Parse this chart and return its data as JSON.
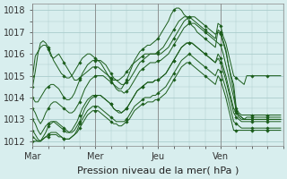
{
  "bg_color": "#d8eeee",
  "grid_color": "#aacccc",
  "line_color": "#1a5c1a",
  "marker_color": "#1a5c1a",
  "ylabel_ticks": [
    1012,
    1013,
    1014,
    1015,
    1016,
    1017,
    1018
  ],
  "xlim": [
    0,
    96
  ],
  "ylim": [
    1011.8,
    1018.3
  ],
  "xlabel": "Pression niveau de la mer( hPa )",
  "xlabel_fontsize": 8,
  "tick_fontsize": 7,
  "day_labels": [
    "Mar",
    "Mer",
    "Jeu",
    "Ven"
  ],
  "day_positions": [
    0,
    24,
    48,
    72
  ],
  "series": [
    [
      1015.0,
      1015.9,
      1016.1,
      1016.3,
      1016.4,
      1016.4,
      1016.2,
      1015.9,
      1015.8,
      1015.9,
      1016.0,
      1015.8,
      1015.6,
      1015.4,
      1015.2,
      1015.0,
      1014.8,
      1014.8,
      1014.9,
      1015.0,
      1015.1,
      1015.2,
      1015.3,
      1015.4,
      1015.4,
      1015.4,
      1015.3,
      1015.2,
      1015.1,
      1015.0,
      1014.9,
      1014.8,
      1014.8,
      1014.8,
      1014.9,
      1015.0,
      1015.2,
      1015.3,
      1015.5,
      1015.6,
      1015.7,
      1015.8,
      1015.9,
      1016.0,
      1016.0,
      1016.0,
      1016.0,
      1016.0,
      1016.1,
      1016.2,
      1016.3,
      1016.5,
      1016.7,
      1016.9,
      1017.1,
      1017.3,
      1017.5,
      1017.6,
      1017.7,
      1017.7,
      1017.7,
      1017.6,
      1017.5,
      1017.4,
      1017.3,
      1017.2,
      1017.1,
      1017.0,
      1016.9,
      1016.8,
      1016.7,
      1017.4,
      1017.3,
      1016.8,
      1016.5,
      1016.0,
      1015.5,
      1015.0,
      1014.9,
      1014.8,
      1014.7,
      1014.6,
      1015.0,
      1015.0,
      1015.0,
      1015.0,
      1015.0,
      1015.0,
      1015.0,
      1015.0,
      1015.0,
      1015.0,
      1015.0,
      1015.0,
      1015.0,
      1015.0
    ],
    [
      1014.5,
      1015.2,
      1016.0,
      1016.5,
      1016.6,
      1016.5,
      1016.3,
      1016.0,
      1015.7,
      1015.5,
      1015.3,
      1015.1,
      1015.0,
      1014.9,
      1014.9,
      1015.0,
      1015.2,
      1015.4,
      1015.6,
      1015.8,
      1015.9,
      1016.0,
      1016.0,
      1015.9,
      1015.8,
      1015.7,
      1015.6,
      1015.4,
      1015.2,
      1015.0,
      1014.8,
      1014.6,
      1014.5,
      1014.4,
      1014.4,
      1014.6,
      1014.8,
      1015.1,
      1015.4,
      1015.7,
      1015.9,
      1016.1,
      1016.2,
      1016.3,
      1016.4,
      1016.4,
      1016.5,
      1016.6,
      1016.7,
      1016.9,
      1017.1,
      1017.3,
      1017.5,
      1017.8,
      1018.0,
      1018.1,
      1018.1,
      1018.0,
      1017.8,
      1017.7,
      1017.5,
      1017.3,
      1017.2,
      1017.0,
      1016.9,
      1016.8,
      1016.7,
      1016.6,
      1016.5,
      1016.4,
      1016.3,
      1017.1,
      1017.0,
      1016.6,
      1016.2,
      1015.5,
      1014.9,
      1014.3,
      1013.4,
      1013.2,
      1013.1,
      1013.0,
      1013.1,
      1013.1,
      1013.1,
      1013.1,
      1013.1,
      1013.1,
      1013.1,
      1013.1,
      1013.1,
      1013.1,
      1013.1,
      1013.1,
      1013.1,
      1013.1
    ],
    [
      1014.0,
      1013.8,
      1013.8,
      1014.0,
      1014.2,
      1014.4,
      1014.5,
      1014.6,
      1014.6,
      1014.5,
      1014.4,
      1014.2,
      1014.0,
      1013.9,
      1013.9,
      1014.0,
      1014.2,
      1014.5,
      1014.8,
      1015.1,
      1015.3,
      1015.5,
      1015.6,
      1015.7,
      1015.7,
      1015.7,
      1015.7,
      1015.6,
      1015.5,
      1015.3,
      1015.1,
      1014.9,
      1014.8,
      1014.7,
      1014.6,
      1014.6,
      1014.7,
      1014.8,
      1015.0,
      1015.2,
      1015.4,
      1015.6,
      1015.7,
      1015.8,
      1015.9,
      1016.0,
      1016.0,
      1016.0,
      1016.0,
      1016.0,
      1016.1,
      1016.2,
      1016.3,
      1016.5,
      1016.7,
      1016.9,
      1017.1,
      1017.3,
      1017.5,
      1017.6,
      1017.7,
      1017.7,
      1017.7,
      1017.6,
      1017.5,
      1017.4,
      1017.3,
      1017.2,
      1017.1,
      1017.0,
      1016.9,
      1017.0,
      1016.9,
      1016.5,
      1016.1,
      1015.5,
      1015.0,
      1014.6,
      1013.5,
      1013.3,
      1013.2,
      1013.2,
      1013.2,
      1013.2,
      1013.2,
      1013.2,
      1013.2,
      1013.2,
      1013.2,
      1013.2,
      1013.2,
      1013.2,
      1013.2,
      1013.2,
      1013.2,
      1013.2
    ],
    [
      1013.5,
      1013.3,
      1013.0,
      1012.8,
      1013.0,
      1013.3,
      1013.5,
      1013.7,
      1013.8,
      1013.8,
      1013.7,
      1013.6,
      1013.5,
      1013.4,
      1013.3,
      1013.3,
      1013.4,
      1013.6,
      1013.8,
      1014.1,
      1014.4,
      1014.6,
      1014.8,
      1014.9,
      1015.0,
      1015.0,
      1015.0,
      1015.0,
      1014.9,
      1014.8,
      1014.7,
      1014.6,
      1014.4,
      1014.3,
      1014.3,
      1014.2,
      1014.3,
      1014.4,
      1014.6,
      1014.8,
      1015.0,
      1015.2,
      1015.3,
      1015.4,
      1015.5,
      1015.6,
      1015.6,
      1015.6,
      1015.7,
      1015.7,
      1015.8,
      1015.9,
      1016.0,
      1016.2,
      1016.4,
      1016.6,
      1016.8,
      1017.0,
      1017.2,
      1017.3,
      1017.4,
      1017.4,
      1017.4,
      1017.3,
      1017.2,
      1017.1,
      1017.0,
      1016.9,
      1016.8,
      1016.7,
      1016.6,
      1016.5,
      1016.4,
      1016.0,
      1015.5,
      1015.0,
      1014.5,
      1014.0,
      1013.4,
      1013.2,
      1013.1,
      1013.0,
      1013.0,
      1013.0,
      1013.0,
      1013.0,
      1013.0,
      1013.0,
      1013.0,
      1013.0,
      1013.0,
      1013.0,
      1013.0,
      1013.0,
      1013.0,
      1013.0
    ],
    [
      1013.0,
      1012.8,
      1012.5,
      1012.3,
      1012.5,
      1012.7,
      1012.8,
      1012.9,
      1012.9,
      1012.8,
      1012.7,
      1012.6,
      1012.5,
      1012.4,
      1012.4,
      1012.5,
      1012.7,
      1012.9,
      1013.2,
      1013.5,
      1013.7,
      1013.9,
      1014.0,
      1014.1,
      1014.1,
      1014.1,
      1014.1,
      1014.0,
      1013.9,
      1013.8,
      1013.7,
      1013.5,
      1013.4,
      1013.4,
      1013.3,
      1013.4,
      1013.5,
      1013.7,
      1013.9,
      1014.1,
      1014.3,
      1014.4,
      1014.5,
      1014.6,
      1014.7,
      1014.7,
      1014.7,
      1014.8,
      1014.8,
      1014.9,
      1015.0,
      1015.1,
      1015.3,
      1015.5,
      1015.7,
      1015.9,
      1016.1,
      1016.3,
      1016.4,
      1016.5,
      1016.5,
      1016.5,
      1016.4,
      1016.3,
      1016.2,
      1016.1,
      1016.0,
      1015.9,
      1015.8,
      1015.7,
      1015.6,
      1016.0,
      1015.8,
      1015.4,
      1015.0,
      1014.5,
      1014.0,
      1013.5,
      1013.3,
      1013.1,
      1013.0,
      1013.0,
      1013.0,
      1013.0,
      1013.0,
      1013.0,
      1013.0,
      1013.0,
      1013.0,
      1013.0,
      1013.0,
      1013.0,
      1013.0,
      1013.0,
      1013.0,
      1013.0
    ],
    [
      1012.5,
      1012.3,
      1012.1,
      1012.0,
      1012.2,
      1012.4,
      1012.7,
      1012.8,
      1012.9,
      1012.9,
      1012.8,
      1012.7,
      1012.6,
      1012.5,
      1012.4,
      1012.4,
      1012.5,
      1012.7,
      1012.9,
      1013.2,
      1013.5,
      1013.7,
      1013.9,
      1014.0,
      1014.1,
      1014.1,
      1014.1,
      1014.0,
      1013.9,
      1013.8,
      1013.7,
      1013.5,
      1013.4,
      1013.3,
      1013.3,
      1013.4,
      1013.5,
      1013.7,
      1013.9,
      1014.1,
      1014.3,
      1014.4,
      1014.5,
      1014.6,
      1014.7,
      1014.7,
      1014.7,
      1014.8,
      1014.8,
      1014.9,
      1015.0,
      1015.1,
      1015.3,
      1015.5,
      1015.7,
      1015.9,
      1016.1,
      1016.3,
      1016.4,
      1016.5,
      1016.5,
      1016.5,
      1016.4,
      1016.3,
      1016.2,
      1016.1,
      1016.0,
      1015.9,
      1015.8,
      1015.7,
      1015.6,
      1015.8,
      1015.6,
      1015.2,
      1014.8,
      1014.3,
      1013.8,
      1013.3,
      1013.1,
      1013.0,
      1012.9,
      1012.9,
      1012.9,
      1012.9,
      1012.9,
      1012.9,
      1012.9,
      1012.9,
      1012.9,
      1012.9,
      1012.9,
      1012.9,
      1012.9,
      1012.9,
      1012.9,
      1012.9
    ],
    [
      1012.2,
      1012.1,
      1012.0,
      1012.0,
      1012.1,
      1012.2,
      1012.3,
      1012.4,
      1012.4,
      1012.4,
      1012.3,
      1012.2,
      1012.1,
      1012.1,
      1012.1,
      1012.2,
      1012.3,
      1012.5,
      1012.8,
      1013.0,
      1013.2,
      1013.4,
      1013.5,
      1013.6,
      1013.6,
      1013.6,
      1013.5,
      1013.4,
      1013.3,
      1013.2,
      1013.1,
      1013.0,
      1012.9,
      1012.9,
      1012.9,
      1012.9,
      1013.0,
      1013.2,
      1013.4,
      1013.6,
      1013.7,
      1013.8,
      1013.9,
      1014.0,
      1014.0,
      1014.0,
      1014.1,
      1014.1,
      1014.2,
      1014.3,
      1014.4,
      1014.5,
      1014.7,
      1014.9,
      1015.1,
      1015.3,
      1015.5,
      1015.7,
      1015.8,
      1015.9,
      1016.0,
      1015.9,
      1015.8,
      1015.7,
      1015.6,
      1015.5,
      1015.4,
      1015.3,
      1015.2,
      1015.1,
      1015.0,
      1015.3,
      1015.2,
      1014.8,
      1014.4,
      1013.9,
      1013.4,
      1012.9,
      1012.8,
      1012.7,
      1012.6,
      1012.6,
      1012.6,
      1012.6,
      1012.6,
      1012.6,
      1012.6,
      1012.6,
      1012.6,
      1012.6,
      1012.6,
      1012.6,
      1012.6,
      1012.6,
      1012.6,
      1012.6
    ],
    [
      1012.0,
      1012.0,
      1012.0,
      1012.0,
      1012.1,
      1012.2,
      1012.2,
      1012.3,
      1012.3,
      1012.3,
      1012.2,
      1012.2,
      1012.1,
      1012.1,
      1012.1,
      1012.2,
      1012.3,
      1012.4,
      1012.6,
      1012.8,
      1013.0,
      1013.2,
      1013.3,
      1013.4,
      1013.4,
      1013.4,
      1013.3,
      1013.2,
      1013.1,
      1013.0,
      1012.9,
      1012.8,
      1012.8,
      1012.7,
      1012.7,
      1012.8,
      1012.9,
      1013.0,
      1013.2,
      1013.4,
      1013.5,
      1013.6,
      1013.7,
      1013.7,
      1013.8,
      1013.8,
      1013.8,
      1013.9,
      1013.9,
      1014.0,
      1014.1,
      1014.2,
      1014.4,
      1014.6,
      1014.8,
      1015.0,
      1015.2,
      1015.4,
      1015.5,
      1015.6,
      1015.6,
      1015.5,
      1015.4,
      1015.3,
      1015.2,
      1015.1,
      1015.0,
      1014.9,
      1014.8,
      1014.7,
      1014.6,
      1015.0,
      1014.8,
      1014.4,
      1014.0,
      1013.5,
      1013.0,
      1012.5,
      1012.5,
      1012.5,
      1012.5,
      1012.5,
      1012.5,
      1012.5,
      1012.5,
      1012.5,
      1012.5,
      1012.5,
      1012.5,
      1012.5,
      1012.5,
      1012.5,
      1012.5,
      1012.5,
      1012.5,
      1012.5
    ]
  ]
}
